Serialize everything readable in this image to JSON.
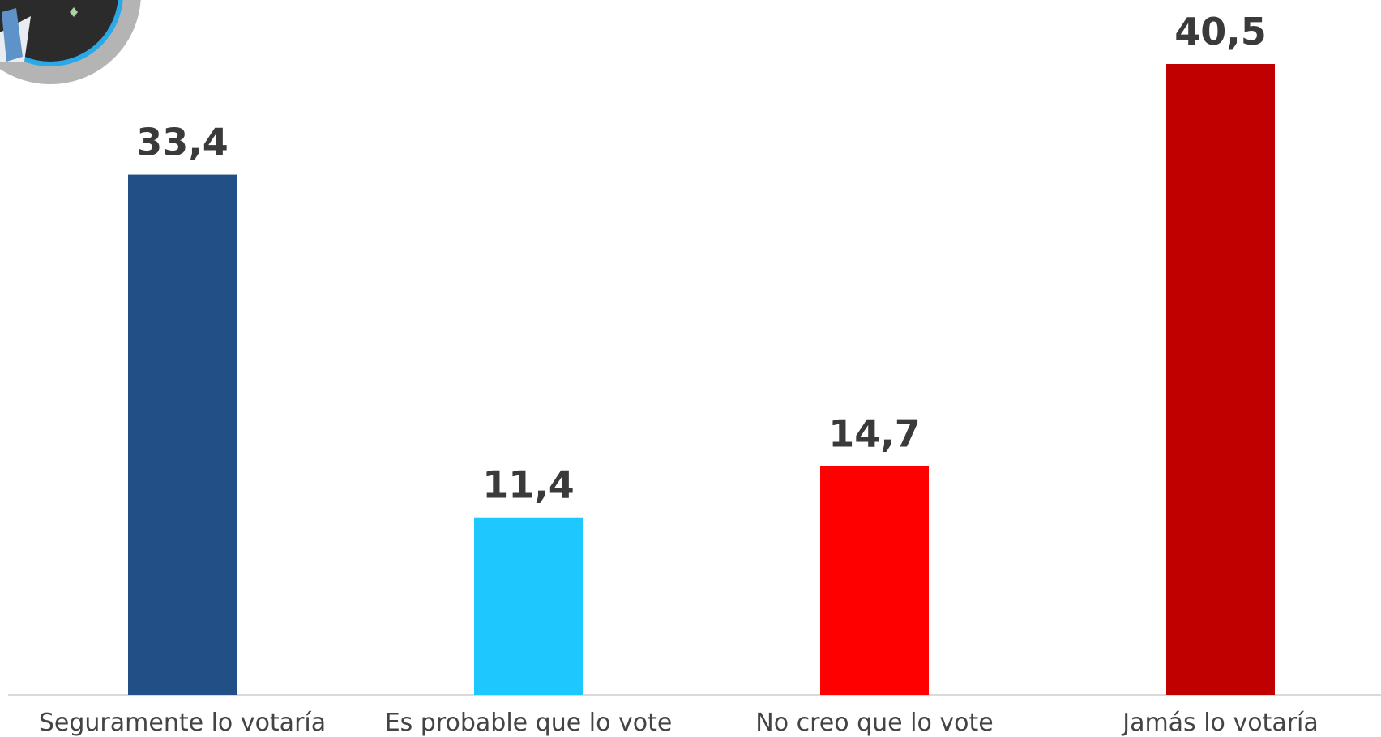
{
  "chart_data": {
    "type": "bar",
    "categories": [
      "Seguramente lo votaría",
      "Es probable que lo vote",
      "No creo que lo vote",
      "Jamás lo votaría"
    ],
    "values": [
      33.4,
      11.4,
      14.7,
      40.5
    ],
    "value_labels": [
      "33,4",
      "11,4",
      "14,7",
      "40,5"
    ],
    "colors": [
      "#214f86",
      "#1ec8ff",
      "#ff0000",
      "#c00000"
    ],
    "title": "",
    "xlabel": "",
    "ylabel": "",
    "ylim": [
      0,
      40.5
    ],
    "grid": false,
    "legend": "none"
  },
  "avatar": {
    "icon": "candidate-photo-avatar",
    "ring_colors": [
      "#b4b4b4",
      "#29a9e8"
    ]
  }
}
